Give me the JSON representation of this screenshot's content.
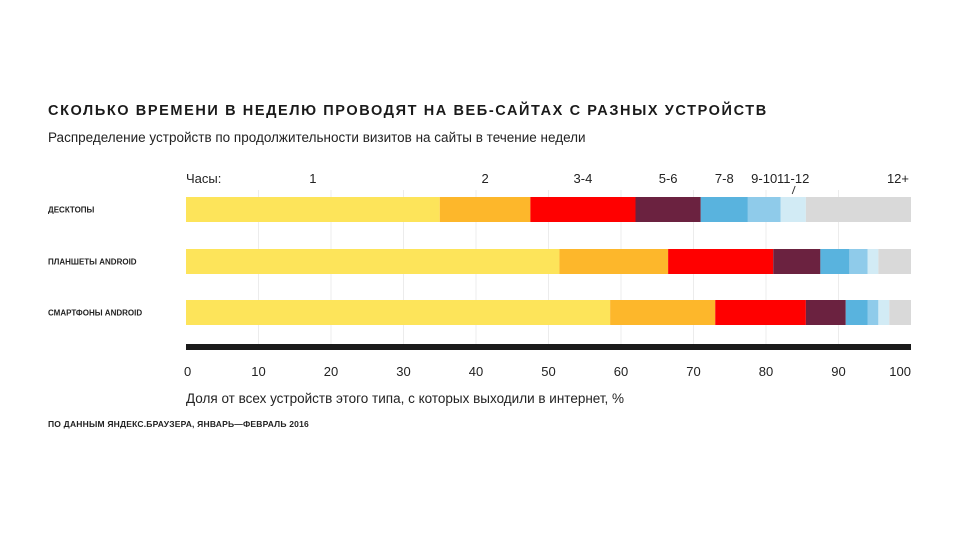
{
  "header": {
    "title": "СКОЛЬКО ВРЕМЕНИ В НЕДЕЛЮ ПРОВОДЯТ НА ВЕБ-САЙТАХ С РАЗНЫХ УСТРОЙСТВ",
    "subtitle": "Распределение устройств по продолжительности визитов на сайты в течение недели"
  },
  "footer": {
    "source": "ПО ДАННЫМ ЯНДЕКС.БРАУЗЕРА, ЯНВАРЬ—ФЕВРАЛЬ 2016"
  },
  "chart_data": {
    "type": "bar",
    "orientation": "horizontal",
    "stacked": true,
    "title": "СКОЛЬКО ВРЕМЕНИ В НЕДЕЛЮ ПРОВОДЯТ НА ВЕБ-САЙТАХ С РАЗНЫХ УСТРОЙСТВ",
    "subtitle": "Распределение устройств по продолжительности визитов на сайты в течение недели",
    "xlabel": "Доля от всех устройств этого типа, с которых выходили в интернет, %",
    "xlim": [
      0,
      100
    ],
    "xticks": [
      0,
      10,
      20,
      30,
      40,
      50,
      60,
      70,
      80,
      90,
      100
    ],
    "grid": true,
    "legend_title": "Часы:",
    "categories": [
      "ДЕСКТОПЫ",
      "ПЛАНШЕТЫ ANDROID",
      "СМАРТФОНЫ ANDROID"
    ],
    "series": [
      {
        "name": "1",
        "color": "#fde45a",
        "values": [
          35.0,
          51.5,
          58.5
        ]
      },
      {
        "name": "2",
        "color": "#fdb72b",
        "values": [
          12.5,
          15.0,
          14.5
        ]
      },
      {
        "name": "3-4",
        "color": "#ff0000",
        "values": [
          14.5,
          14.5,
          12.5
        ]
      },
      {
        "name": "5-6",
        "color": "#6b2240",
        "values": [
          9.0,
          6.5,
          5.5
        ]
      },
      {
        "name": "7-8",
        "color": "#59b3de",
        "values": [
          6.5,
          4.0,
          3.0
        ]
      },
      {
        "name": "9-10",
        "color": "#8fcbea",
        "values": [
          4.5,
          2.5,
          1.5
        ]
      },
      {
        "name": "11-12",
        "color": "#d2ebf5",
        "values": [
          3.5,
          1.5,
          1.5
        ]
      },
      {
        "name": "12+",
        "color": "#d9d9d9",
        "values": [
          14.5,
          4.5,
          3.0
        ]
      }
    ]
  }
}
